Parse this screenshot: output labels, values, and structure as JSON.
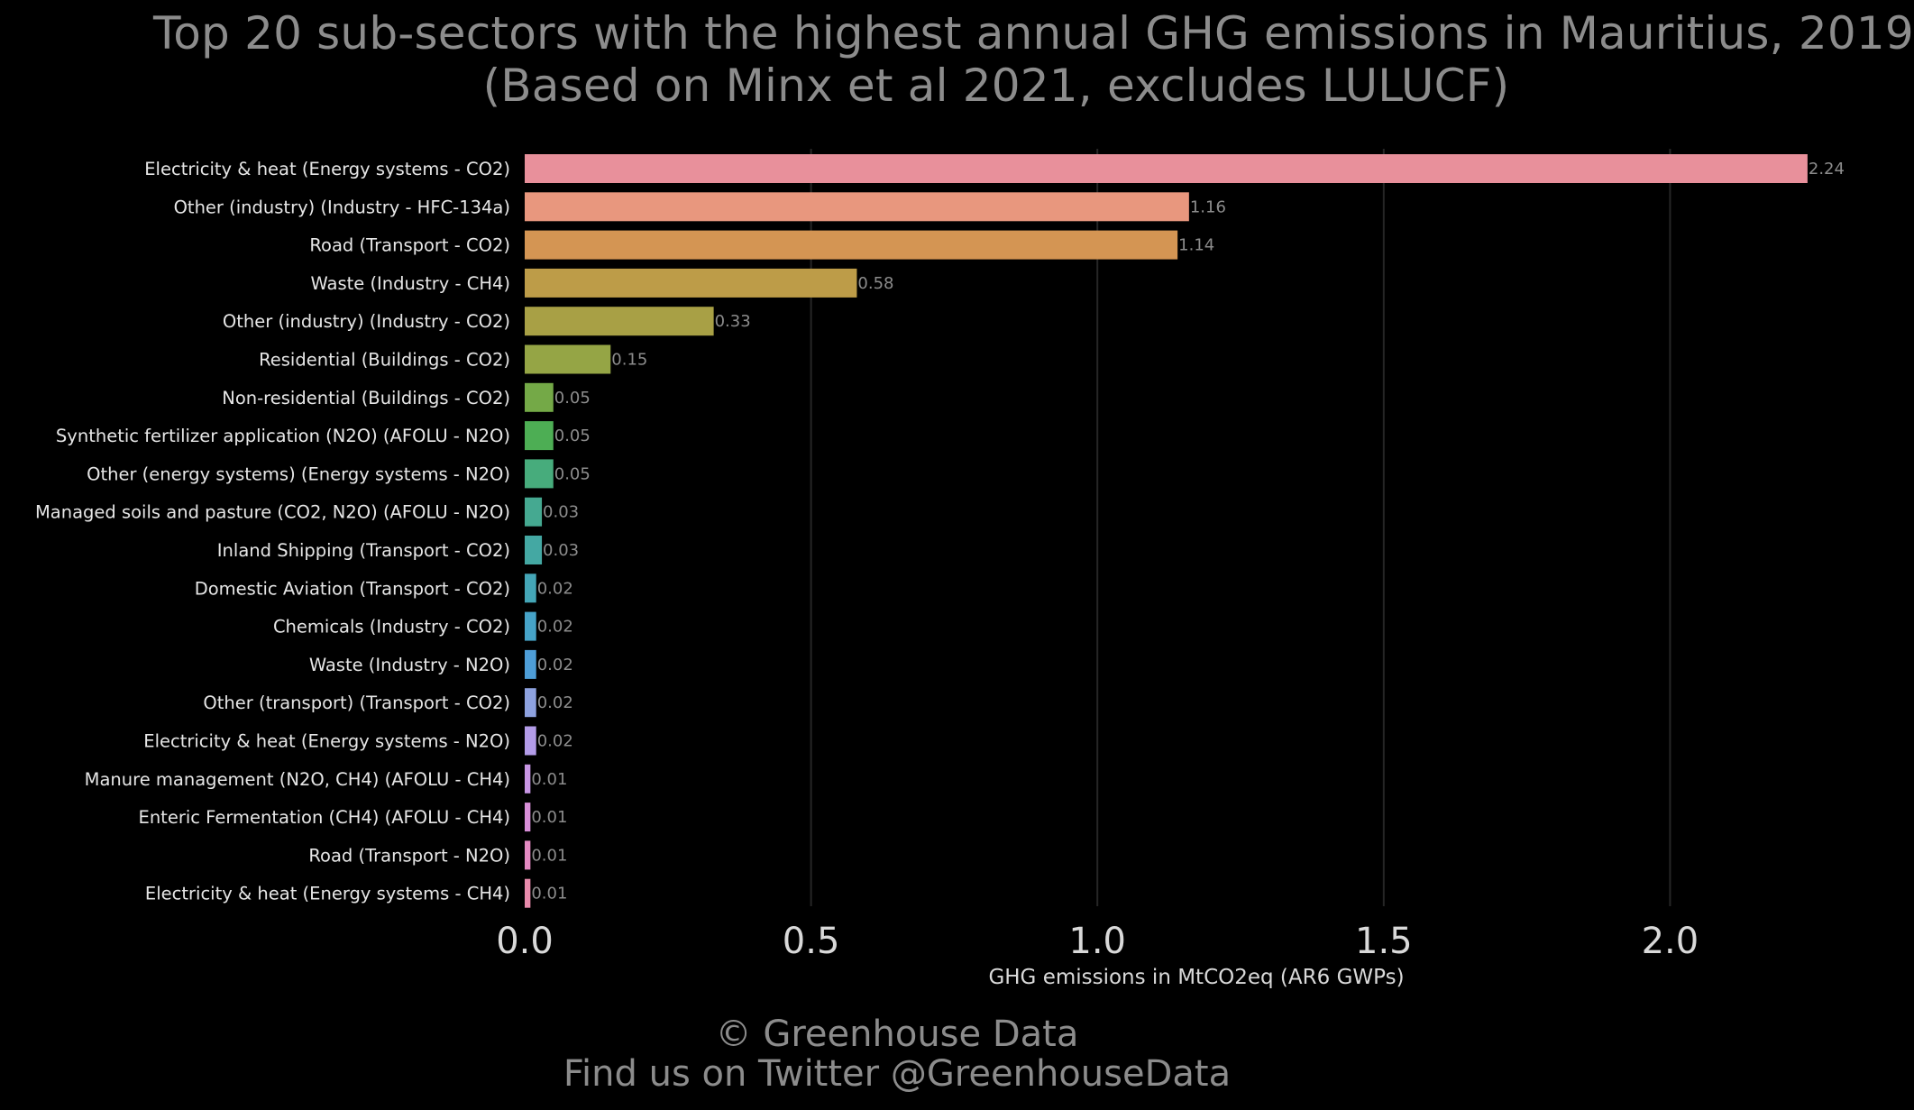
{
  "chart_data": {
    "type": "bar",
    "orientation": "horizontal",
    "title": "Top 20 sub-sectors with the highest annual GHG emissions in Mauritius, 2019",
    "subtitle": "(Based on Minx et al 2021, excludes LULUCF)",
    "xlabel": "GHG emissions in MtCO2eq (AR6 GWPs)",
    "ylabel": "",
    "xlim": [
      0,
      2.3
    ],
    "xticks": [
      "0.0",
      "0.5",
      "1.0",
      "1.5",
      "2.0"
    ],
    "grid": "vertical",
    "legend": "none",
    "categories": [
      "Electricity & heat (Energy systems - CO2)",
      "Other (industry) (Industry - HFC-134a)",
      "Road (Transport - CO2)",
      "Waste (Industry - CH4)",
      "Other (industry) (Industry - CO2)",
      "Residential (Buildings - CO2)",
      "Non-residential (Buildings - CO2)",
      "Synthetic fertilizer application (N2O) (AFOLU - N2O)",
      "Other (energy systems) (Energy systems - N2O)",
      "Managed soils and pasture (CO2, N2O) (AFOLU - N2O)",
      "Inland Shipping (Transport - CO2)",
      "Domestic Aviation (Transport - CO2)",
      "Chemicals (Industry - CO2)",
      "Waste (Industry - N2O)",
      "Other (transport) (Transport - CO2)",
      "Electricity & heat (Energy systems - N2O)",
      "Manure management (N2O, CH4) (AFOLU - CH4)",
      "Enteric Fermentation (CH4) (AFOLU - CH4)",
      "Road (Transport - N2O)",
      "Electricity & heat (Energy systems - CH4)"
    ],
    "values": [
      2.24,
      1.16,
      1.14,
      0.58,
      0.33,
      0.15,
      0.05,
      0.05,
      0.05,
      0.03,
      0.03,
      0.02,
      0.02,
      0.02,
      0.02,
      0.02,
      0.01,
      0.01,
      0.01,
      0.01
    ],
    "value_labels": [
      "2.24",
      "1.16",
      "1.14",
      "0.58",
      "0.33",
      "0.15",
      "0.05",
      "0.05",
      "0.05",
      "0.03",
      "0.03",
      "0.02",
      "0.02",
      "0.02",
      "0.02",
      "0.02",
      "0.01",
      "0.01",
      "0.01",
      "0.01"
    ],
    "bar_colors": [
      "#e8909b",
      "#e8977e",
      "#d49553",
      "#bd9c48",
      "#a8a045",
      "#95a545",
      "#74a947",
      "#4dae54",
      "#47ac7c",
      "#45a991",
      "#44a8a3",
      "#44a6b7",
      "#46a3c8",
      "#4e9ed8",
      "#8ea2e0",
      "#b39ce8",
      "#c896e4",
      "#d88fd8",
      "#e48ac2",
      "#e98bac"
    ]
  },
  "footer": {
    "copyright": "© Greenhouse Data",
    "twitter": "Find us on Twitter @GreenhouseData"
  },
  "colors": {
    "background": "#000000",
    "text": "#8c8c8c",
    "axis_text": "#d9d9d9",
    "gridline": "#262626"
  }
}
